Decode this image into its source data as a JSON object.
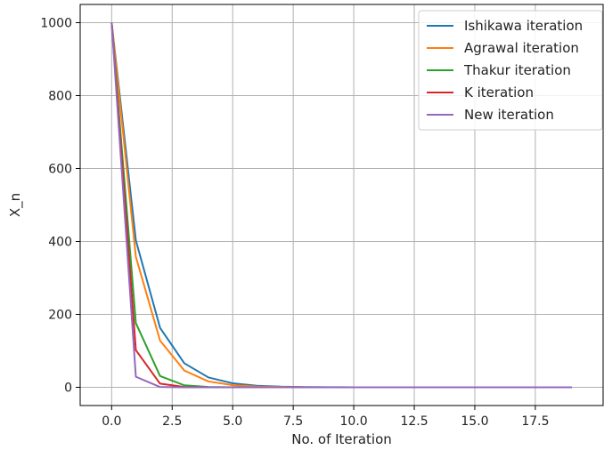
{
  "chart_data": {
    "type": "line",
    "title": "",
    "xlabel": "No. of Iteration",
    "ylabel": "X_n",
    "xlim": [
      -1.3,
      20.3
    ],
    "ylim": [
      -50,
      1050
    ],
    "xticks": [
      0.0,
      2.5,
      5.0,
      7.5,
      10.0,
      12.5,
      15.0,
      17.5
    ],
    "xtick_labels": [
      "0.0",
      "2.5",
      "5.0",
      "7.5",
      "10.0",
      "12.5",
      "15.0",
      "17.5"
    ],
    "yticks": [
      0,
      200,
      400,
      600,
      800,
      1000
    ],
    "ytick_labels": [
      "0",
      "200",
      "400",
      "600",
      "800",
      "1000"
    ],
    "grid": true,
    "legend_position": "top-right",
    "x": [
      0,
      1,
      2,
      3,
      4,
      5,
      6,
      7,
      8,
      9,
      10,
      11,
      12,
      13,
      14,
      15,
      16,
      17,
      18,
      19
    ],
    "series": [
      {
        "name": "Ishikawa iteration",
        "color": "#1f77b4",
        "values": [
          1000,
          403,
          163,
          66,
          27,
          11,
          4.4,
          1.8,
          0.7,
          0.3,
          0.1,
          0,
          0,
          0,
          0,
          0,
          0,
          0,
          0,
          0
        ]
      },
      {
        "name": "Agrawal iteration",
        "color": "#ff7f0e",
        "values": [
          1000,
          358,
          128,
          46,
          16,
          5.9,
          2.1,
          0.8,
          0.3,
          0.1,
          0,
          0,
          0,
          0,
          0,
          0,
          0,
          0,
          0,
          0
        ]
      },
      {
        "name": "Thakur iteration",
        "color": "#2ca02c",
        "values": [
          1000,
          176,
          31,
          5.5,
          1,
          0.2,
          0,
          0,
          0,
          0,
          0,
          0,
          0,
          0,
          0,
          0,
          0,
          0,
          0,
          0
        ]
      },
      {
        "name": "K iteration",
        "color": "#d62728",
        "values": [
          1000,
          102,
          10,
          1,
          0.1,
          0,
          0,
          0,
          0,
          0,
          0,
          0,
          0,
          0,
          0,
          0,
          0,
          0,
          0,
          0
        ]
      },
      {
        "name": "New iteration",
        "color": "#9467bd",
        "values": [
          1000,
          29,
          0.8,
          0,
          0,
          0,
          0,
          0,
          0,
          0,
          0,
          0,
          0,
          0,
          0,
          0,
          0,
          0,
          0,
          0
        ]
      }
    ]
  }
}
